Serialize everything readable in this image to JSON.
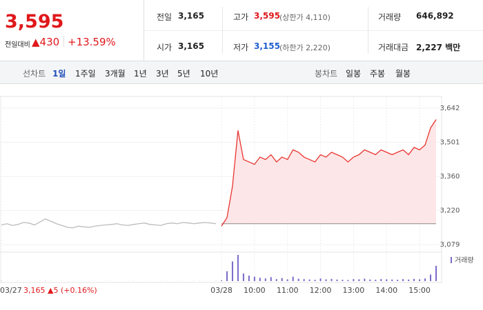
{
  "header": {
    "price": "3,595",
    "change_label": "전일대비",
    "change": "▲430",
    "change_pct": "+13.59%"
  },
  "summary": {
    "rows": [
      [
        {
          "label": "전일",
          "value": "3,165"
        },
        {
          "label": "고가",
          "value": "3,595",
          "note": "(상한가 4,110)"
        },
        {
          "label": "거래량",
          "value": "646,892"
        }
      ],
      [
        {
          "label": "시가",
          "value": "3,165"
        },
        {
          "label": "저가",
          "value": "3,155",
          "note": "(하한가 2,220)"
        },
        {
          "label": "거래대금",
          "value": "2,227 백만"
        }
      ]
    ]
  },
  "tabs": {
    "line_label": "선차트",
    "line": [
      "1일",
      "1주일",
      "3개월",
      "1년",
      "3년",
      "5년",
      "10년"
    ],
    "candle_label": "봉차트",
    "candle": [
      "일봉",
      "주봉",
      "월봉"
    ]
  },
  "chart_data": {
    "type": "line",
    "x": [
      0,
      1,
      2,
      3,
      4,
      5,
      6,
      7,
      8,
      9,
      10,
      11,
      12,
      13,
      14,
      15,
      16,
      17,
      18,
      19,
      20,
      21,
      22,
      23,
      24,
      25,
      26,
      27,
      28,
      29,
      30,
      31,
      32,
      33,
      34,
      35,
      36,
      37,
      38,
      39,
      40,
      41,
      42,
      43,
      44,
      45,
      46,
      47,
      48,
      49,
      50,
      51,
      52,
      53,
      54,
      55,
      56,
      57,
      58,
      59,
      60,
      61,
      62,
      63,
      64,
      65,
      66,
      67,
      68,
      69,
      70,
      71,
      72,
      73,
      74,
      75,
      76,
      77,
      78,
      79
    ],
    "xlim": [
      0,
      79
    ],
    "xticks": [
      {
        "value": 0,
        "label": "03/27"
      },
      {
        "value": 40,
        "label": "03/28"
      },
      {
        "value": 46,
        "label": "10:00"
      },
      {
        "value": 52,
        "label": "11:00"
      },
      {
        "value": 58,
        "label": "12:00"
      },
      {
        "value": 64,
        "label": "13:00"
      },
      {
        "value": 70,
        "label": "14:00"
      },
      {
        "value": 76,
        "label": "15:00"
      }
    ],
    "ylim": [
      3079,
      3642
    ],
    "yticks": [
      {
        "value": 3079,
        "label": "3,079"
      },
      {
        "value": 3220,
        "label": "3,220"
      },
      {
        "value": 3360,
        "label": "3,360"
      },
      {
        "value": 3501,
        "label": "3,501"
      },
      {
        "value": 3642,
        "label": "3,642"
      }
    ],
    "baseline": 3165,
    "annotation": "3,165 ▲5 (+0.16%)",
    "series": [
      {
        "color": "#bbbbbb",
        "values": [
          3160,
          3165,
          3158,
          3162,
          3170,
          3168,
          3160,
          3172,
          3185,
          3175,
          3165,
          3158,
          3150,
          3148,
          3155,
          3152,
          3150,
          3155,
          3158,
          3160,
          3162,
          3165,
          3160,
          3158,
          3162,
          3165,
          3168,
          3162,
          3160,
          3158,
          3165,
          3168,
          3165,
          3170,
          3168,
          3165,
          3168,
          3170,
          3168,
          3165,
          null,
          null,
          null,
          null,
          null,
          null,
          null,
          null,
          null,
          null,
          null,
          null,
          null,
          null,
          null,
          null,
          null,
          null,
          null,
          null,
          null,
          null,
          null,
          null,
          null,
          null,
          null,
          null,
          null,
          null,
          null,
          null,
          null,
          null,
          null,
          null,
          null,
          null,
          null,
          null
        ]
      },
      {
        "color": "#e8342e",
        "fill": "#fde6e8",
        "values": [
          null,
          null,
          null,
          null,
          null,
          null,
          null,
          null,
          null,
          null,
          null,
          null,
          null,
          null,
          null,
          null,
          null,
          null,
          null,
          null,
          null,
          null,
          null,
          null,
          null,
          null,
          null,
          null,
          null,
          null,
          null,
          null,
          null,
          null,
          null,
          null,
          null,
          null,
          null,
          null,
          3155,
          3190,
          3320,
          3550,
          3430,
          3420,
          3410,
          3440,
          3430,
          3450,
          3420,
          3440,
          3430,
          3470,
          3460,
          3440,
          3430,
          3420,
          3450,
          3440,
          3460,
          3450,
          3440,
          3420,
          3440,
          3450,
          3470,
          3460,
          3450,
          3470,
          3460,
          3450,
          3460,
          3470,
          3450,
          3480,
          3470,
          3490,
          3560,
          3595
        ]
      }
    ],
    "volume": {
      "name": "거래량",
      "color": "#7b68c8",
      "values": [
        800,
        300,
        200,
        400,
        150,
        300,
        200,
        500,
        900,
        300,
        200,
        150,
        100,
        200,
        150,
        100,
        200,
        150,
        100,
        300,
        200,
        150,
        100,
        200,
        300,
        150,
        200,
        100,
        150,
        200,
        300,
        150,
        200,
        150,
        100,
        200,
        300,
        250,
        200,
        600,
        3000,
        45000,
        90000,
        120000,
        35000,
        25000,
        20000,
        15000,
        12000,
        18000,
        9000,
        14000,
        8000,
        20000,
        11000,
        9000,
        7000,
        6000,
        12000,
        8000,
        10000,
        7000,
        6000,
        5000,
        9000,
        8000,
        11000,
        7000,
        6000,
        9000,
        8000,
        7000,
        6000,
        9000,
        7000,
        10000,
        8000,
        12000,
        30000,
        70000
      ]
    }
  }
}
